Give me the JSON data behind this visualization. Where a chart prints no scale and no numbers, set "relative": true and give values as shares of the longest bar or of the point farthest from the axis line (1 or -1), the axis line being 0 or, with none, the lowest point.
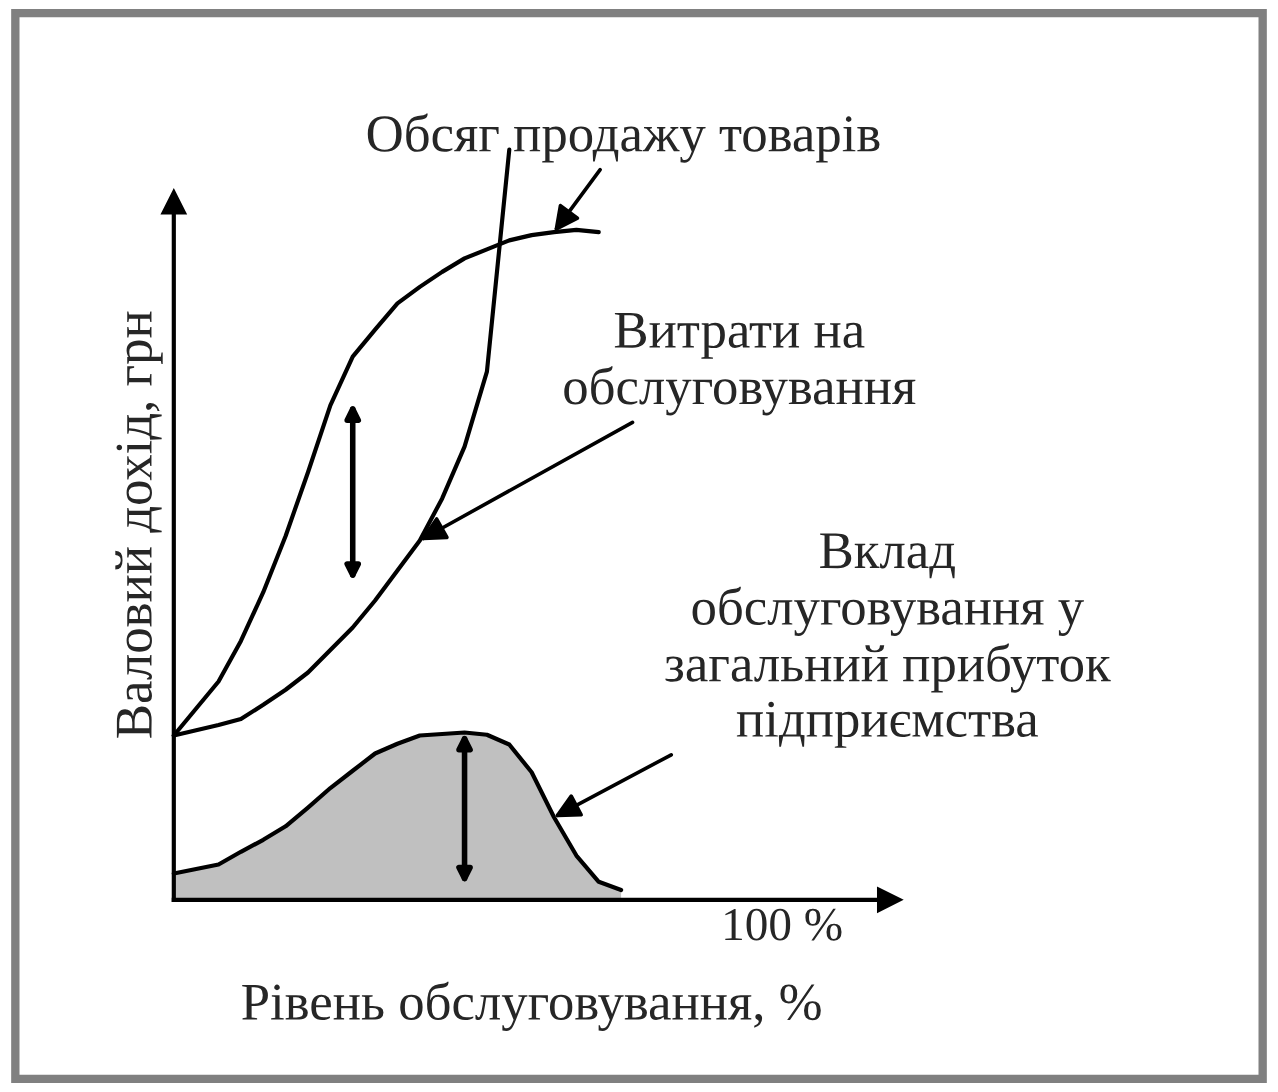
{
  "chart_data": {
    "type": "line",
    "relative": true,
    "xlabel": "Рівень обслуговування, %",
    "ylabel": "Валовий дохід, грн",
    "legend": false,
    "marker": "none",
    "line_style": "solid",
    "categories": [
      null,
      null,
      null,
      null,
      null,
      null,
      null,
      null,
      null,
      null,
      null,
      null,
      null,
      null,
      null,
      null,
      null,
      null,
      null,
      null,
      null
    ],
    "series": [
      {
        "color": "#000000",
        "values": [
          0.219,
          0.255,
          0.291,
          0.345,
          0.41,
          0.485,
          0.57,
          0.659,
          0.724,
          0.76,
          0.795,
          0.817,
          0.837,
          0.855,
          0.867,
          0.879,
          0.886,
          0.89,
          0.893,
          0.89,
          null
        ]
      },
      {
        "color": "#000000",
        "values": [
          0.219,
          0.226,
          0.233,
          0.241,
          0.26,
          0.28,
          0.303,
          0.333,
          0.363,
          0.399,
          0.439,
          0.479,
          0.535,
          0.604,
          0.704,
          1.0,
          null,
          null,
          null,
          null,
          null
        ]
      },
      {
        "type": "area",
        "color": "#c0c0c0",
        "values": [
          0.035,
          0.041,
          0.047,
          0.064,
          0.08,
          0.098,
          0.123,
          0.149,
          0.172,
          0.195,
          0.208,
          0.219,
          0.221,
          0.223,
          0.22,
          0.207,
          0.17,
          0.11,
          0.059,
          0.024,
          0.013
        ]
      }
    ],
    "annotations": [
      "100 %",
      "Обсяг продажу товарів",
      "Витрати на\nобслуговування",
      "Вклад\nобслуговування у\nзагальний прибуток\nпідприємства"
    ]
  }
}
